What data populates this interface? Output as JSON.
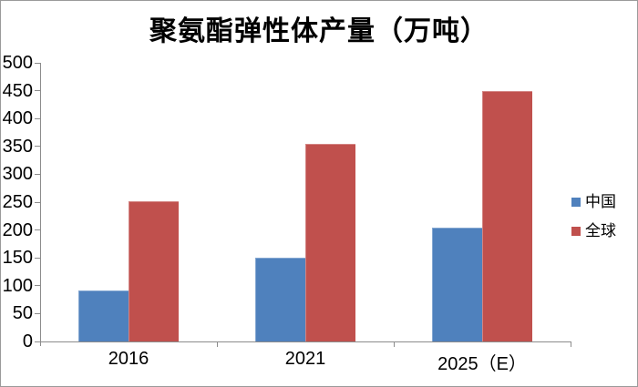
{
  "chart_data": {
    "type": "bar",
    "title": "聚氨酯弹性体产量（万吨）",
    "categories": [
      "2016",
      "2021",
      "2025（E）"
    ],
    "series": [
      {
        "name": "中国",
        "color": "#4F81BD",
        "values": [
          92,
          150,
          205
        ]
      },
      {
        "name": "全球",
        "color": "#C0504D",
        "values": [
          252,
          355,
          450
        ]
      }
    ],
    "ylim": [
      0,
      500
    ],
    "yticks": [
      0,
      50,
      100,
      150,
      200,
      250,
      300,
      350,
      400,
      450,
      500
    ],
    "ytick_step": 50,
    "grid": false,
    "legend_position": "right",
    "axis_color": "#8C8C8C",
    "background_color": "#FFFFFF"
  }
}
